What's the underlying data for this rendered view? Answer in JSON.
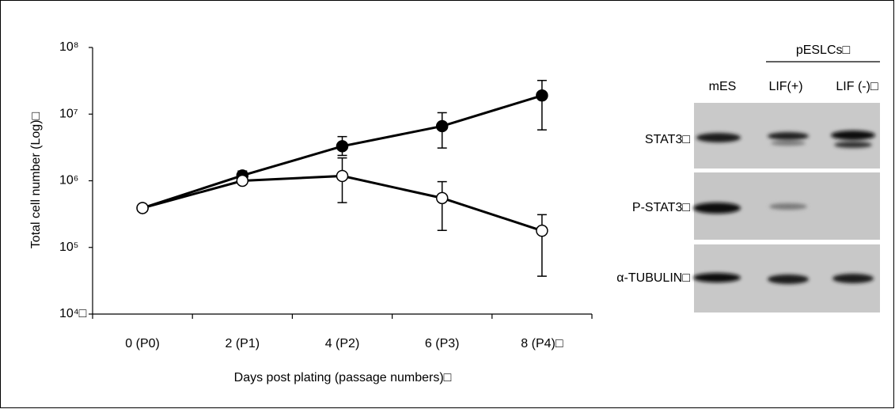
{
  "chart_data": {
    "type": "line",
    "y_label": "Total cell number (Log)□",
    "x_label": "Days post plating (passage numbers)□",
    "categories": [
      "0 (P0)",
      "2 (P1)",
      "4 (P2)",
      "6 (P3)",
      "8 (P4)□"
    ],
    "log_y": true,
    "ylim": [
      10000,
      100000000
    ],
    "yticks": [
      {
        "value": 10000,
        "label": "10⁴□"
      },
      {
        "value": 100000,
        "label": "10⁵"
      },
      {
        "value": 1000000,
        "label": "10⁶"
      },
      {
        "value": 10000000,
        "label": "10⁷"
      },
      {
        "value": 100000000,
        "label": "10⁸"
      }
    ],
    "series": [
      {
        "color": "#000000",
        "marker_fill": "#000000",
        "values": [
          390000,
          1200000,
          3300000,
          6600000,
          19000000
        ],
        "upper": [
          null,
          1400000,
          4600000,
          10500000,
          32000000
        ],
        "lower": [
          null,
          1100000,
          2400000,
          3100000,
          5800000
        ]
      },
      {
        "color": "#000000",
        "marker_fill": "#ffffff",
        "values": [
          390000,
          1000000,
          1180000,
          550000,
          178000
        ],
        "upper": [
          null,
          null,
          2200000,
          970000,
          310000
        ],
        "lower": [
          null,
          null,
          470000,
          180000,
          37000
        ]
      }
    ]
  },
  "blot": {
    "group_label": "pESLCs□",
    "lanes": [
      "mES",
      "LIF(+)",
      "LIF (-)□"
    ],
    "rows": [
      "STAT3□",
      "P-STAT3□",
      "α-TUBULIN□"
    ]
  }
}
